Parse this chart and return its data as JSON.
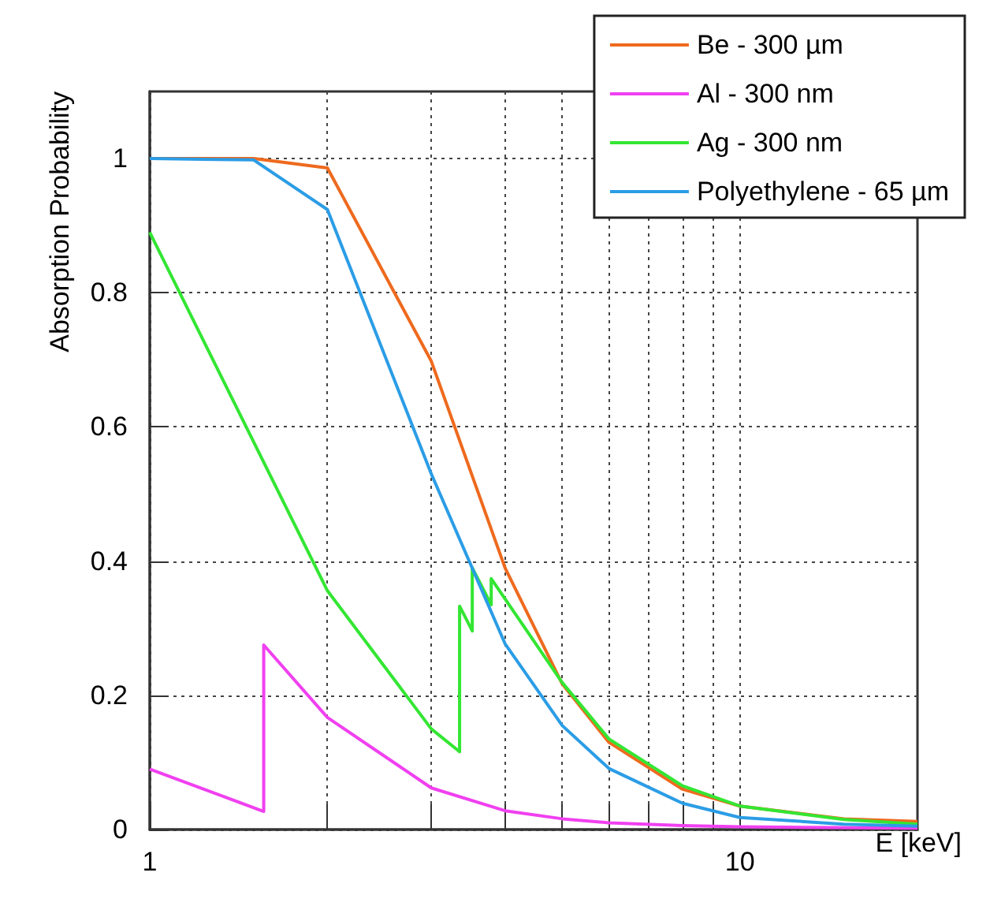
{
  "chart_data": {
    "type": "line",
    "xlabel": "E [keV]",
    "ylabel": "Absorption Probability",
    "log": "x",
    "xlim": [
      1,
      20
    ],
    "ylim": [
      0,
      1.1
    ],
    "xticks": [
      1,
      {
        "value": 2,
        "label": null
      },
      {
        "value": 3,
        "label": null
      },
      {
        "value": 4,
        "label": null
      },
      {
        "value": 5,
        "label": null
      },
      {
        "value": 6,
        "label": null
      },
      {
        "value": 7,
        "label": null
      },
      {
        "value": 8,
        "label": null
      },
      {
        "value": 9,
        "label": null
      },
      10
    ],
    "yticks": [
      0,
      0.2,
      0.4,
      0.6,
      0.8,
      1
    ],
    "grid": true,
    "legend": "top right",
    "marker": "none",
    "line_style": "solid",
    "series": [
      {
        "name": "Be - 300 µm",
        "color": "#ee6a1e",
        "x": [
          1,
          1.5,
          2,
          3,
          4,
          5,
          6,
          8,
          10,
          15,
          20
        ],
        "values": [
          1.0,
          1.0,
          0.986,
          0.698,
          0.39,
          0.217,
          0.13,
          0.06,
          0.035,
          0.016,
          0.012
        ]
      },
      {
        "name": "Al - 300 nm",
        "color": "#f040f0",
        "x": [
          1,
          1.56,
          1.56,
          2,
          3,
          4,
          5,
          6,
          8,
          10,
          20
        ],
        "values": [
          0.09,
          0.027,
          0.275,
          0.167,
          0.062,
          0.028,
          0.016,
          0.01,
          0.006,
          0.004,
          0.002
        ]
      },
      {
        "name": "Ag - 300 nm",
        "color": "#33e633",
        "x": [
          1,
          2,
          3,
          3.35,
          3.35,
          3.52,
          3.52,
          3.79,
          3.79,
          5,
          6,
          8,
          10,
          15,
          20
        ],
        "values": [
          0.89,
          0.356,
          0.15,
          0.116,
          0.333,
          0.296,
          0.39,
          0.335,
          0.374,
          0.219,
          0.135,
          0.065,
          0.035,
          0.015,
          0.008
        ]
      },
      {
        "name": "Polyethylene - 65 µm",
        "color": "#2b9de6",
        "x": [
          1,
          1.5,
          2,
          3,
          4,
          5,
          6,
          8,
          10,
          15,
          20
        ],
        "values": [
          1.0,
          0.998,
          0.924,
          0.53,
          0.277,
          0.155,
          0.091,
          0.039,
          0.018,
          0.008,
          0.005
        ]
      }
    ]
  }
}
